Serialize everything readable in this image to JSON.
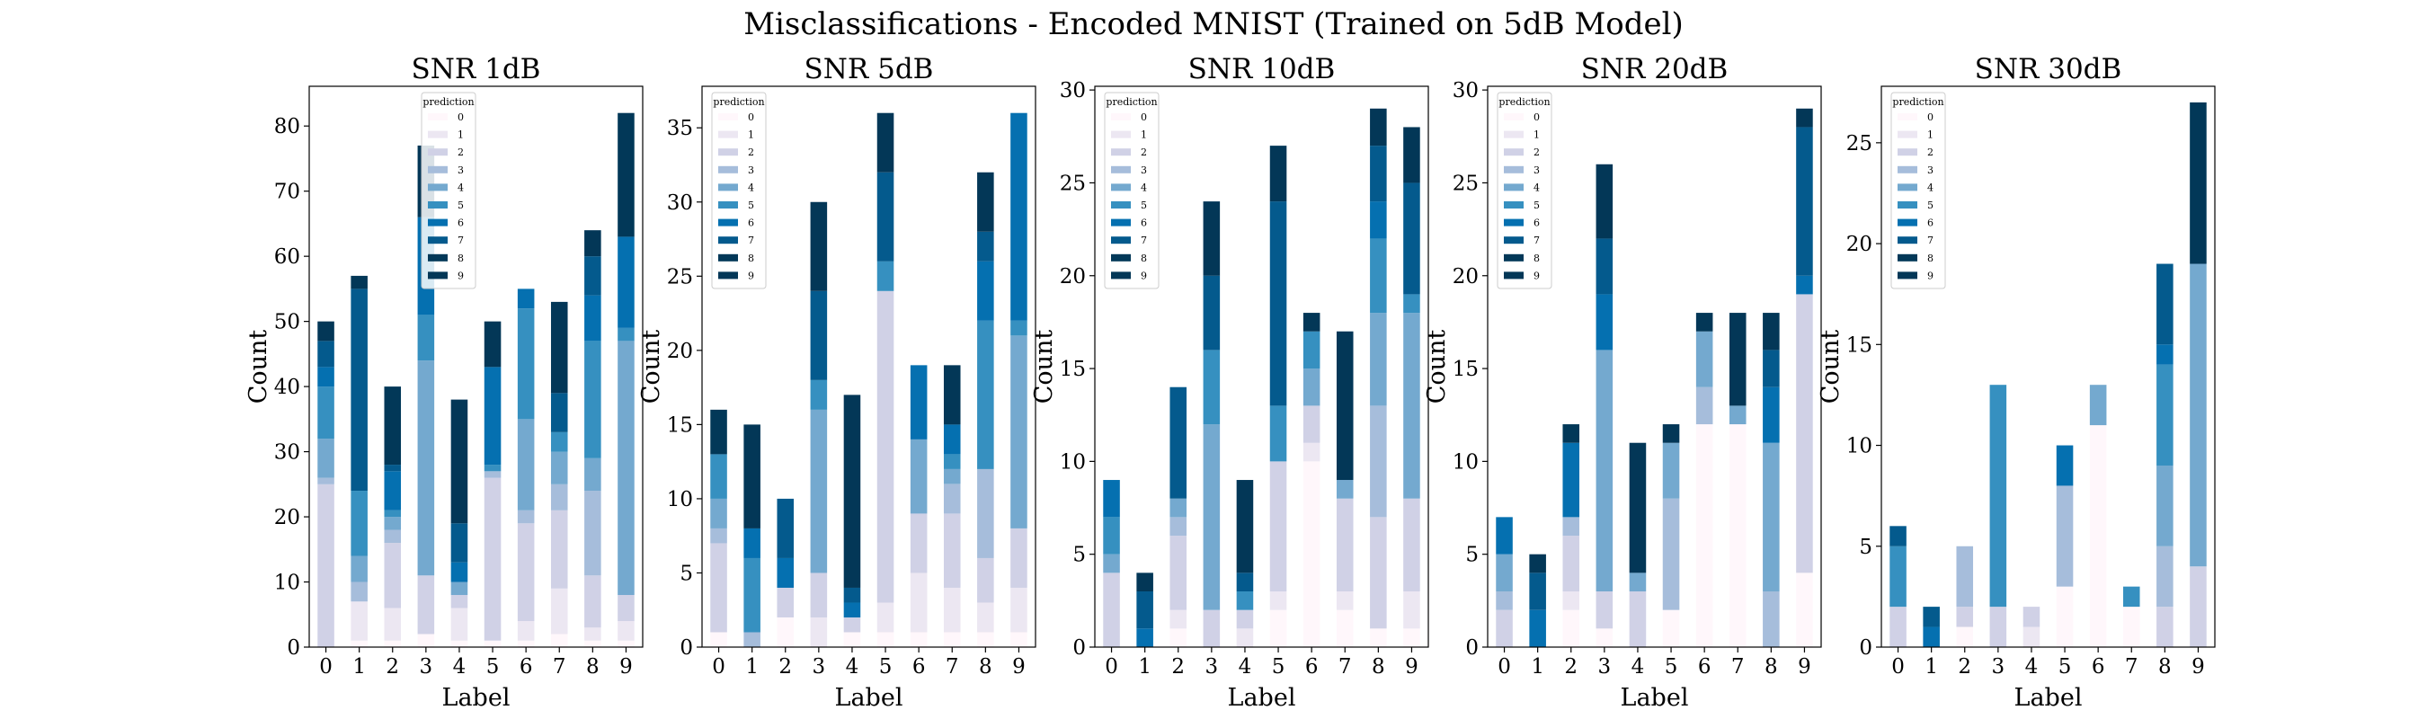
{
  "title": "Misclassifications - Encoded MNIST (Trained on 5dB Model)",
  "legend_title": "prediction",
  "palette": [
    "#fff7fb",
    "#ece7f2",
    "#d0d1e6",
    "#a6bddb",
    "#74a9cf",
    "#3690c0",
    "#0570b0",
    "#045a8d",
    "#023858",
    "#033757"
  ],
  "chart_data": [
    {
      "type": "bar",
      "stacked": true,
      "title": "SNR 1dB",
      "xlabel": "Label",
      "ylabel": "Count",
      "categories": [
        "0",
        "1",
        "2",
        "3",
        "4",
        "5",
        "6",
        "7",
        "8",
        "9"
      ],
      "ylim": [
        0,
        86.1
      ],
      "yticks": [
        0,
        10,
        20,
        30,
        40,
        50,
        60,
        70,
        80
      ],
      "series": [
        {
          "name": "0",
          "values": [
            0,
            1,
            1,
            2,
            1,
            1,
            1,
            2,
            1,
            1
          ]
        },
        {
          "name": "1",
          "values": [
            0,
            6,
            5,
            0,
            5,
            0,
            3,
            7,
            2,
            3
          ]
        },
        {
          "name": "2",
          "values": [
            25,
            0,
            10,
            9,
            2,
            25,
            15,
            12,
            8,
            4
          ]
        },
        {
          "name": "3",
          "values": [
            1,
            3,
            2,
            0,
            0,
            1,
            2,
            4,
            13,
            0
          ]
        },
        {
          "name": "4",
          "values": [
            6,
            4,
            2,
            33,
            2,
            0,
            14,
            5,
            5,
            39
          ]
        },
        {
          "name": "5",
          "values": [
            8,
            10,
            1,
            7,
            0,
            1,
            17,
            3,
            18,
            2
          ]
        },
        {
          "name": "6",
          "values": [
            3,
            0,
            6,
            15,
            3,
            15,
            3,
            0,
            7,
            14
          ]
        },
        {
          "name": "7",
          "values": [
            4,
            31,
            1,
            0,
            6,
            0,
            0,
            6,
            6,
            0
          ]
        },
        {
          "name": "8",
          "values": [
            0,
            0,
            12,
            0,
            0,
            0,
            0,
            0,
            0,
            19
          ]
        },
        {
          "name": "9",
          "values": [
            3,
            2,
            0,
            11,
            19,
            7,
            0,
            14,
            4,
            0
          ]
        }
      ]
    },
    {
      "type": "bar",
      "stacked": true,
      "title": "SNR 5dB",
      "xlabel": "Label",
      "ylabel": "Count",
      "categories": [
        "0",
        "1",
        "2",
        "3",
        "4",
        "5",
        "6",
        "7",
        "8",
        "9"
      ],
      "ylim": [
        0,
        37.8
      ],
      "yticks": [
        0,
        5,
        10,
        15,
        20,
        25,
        30,
        35
      ],
      "series": [
        {
          "name": "0",
          "values": [
            1,
            0,
            2,
            0,
            1,
            1,
            1,
            1,
            1,
            1
          ]
        },
        {
          "name": "1",
          "values": [
            0,
            0,
            0,
            2,
            0,
            2,
            4,
            3,
            2,
            3
          ]
        },
        {
          "name": "2",
          "values": [
            6,
            0,
            2,
            3,
            1,
            21,
            4,
            5,
            3,
            4
          ]
        },
        {
          "name": "3",
          "values": [
            1,
            1,
            0,
            0,
            0,
            0,
            0,
            2,
            6,
            0
          ]
        },
        {
          "name": "4",
          "values": [
            2,
            0,
            0,
            11,
            0,
            0,
            5,
            1,
            0,
            13
          ]
        },
        {
          "name": "5",
          "values": [
            3,
            5,
            0,
            2,
            0,
            2,
            0,
            1,
            10,
            1
          ]
        },
        {
          "name": "6",
          "values": [
            0,
            2,
            2,
            0,
            1,
            0,
            5,
            2,
            4,
            14
          ]
        },
        {
          "name": "7",
          "values": [
            0,
            0,
            4,
            6,
            1,
            6,
            0,
            0,
            2,
            0
          ]
        },
        {
          "name": "8",
          "values": [
            3,
            0,
            0,
            0,
            0,
            0,
            0,
            0,
            0,
            0
          ]
        },
        {
          "name": "9",
          "values": [
            0,
            7,
            0,
            6,
            13,
            4,
            0,
            4,
            4,
            0
          ]
        }
      ]
    },
    {
      "type": "bar",
      "stacked": true,
      "title": "SNR 10dB",
      "xlabel": "Label",
      "ylabel": "Count",
      "categories": [
        "0",
        "1",
        "2",
        "3",
        "4",
        "5",
        "6",
        "7",
        "8",
        "9"
      ],
      "ylim": [
        0,
        30.2
      ],
      "yticks": [
        0,
        5,
        10,
        15,
        20,
        25,
        30
      ],
      "series": [
        {
          "name": "0",
          "values": [
            0,
            0,
            1,
            0,
            0,
            2,
            10,
            2,
            1,
            1
          ]
        },
        {
          "name": "1",
          "values": [
            0,
            0,
            1,
            0,
            1,
            1,
            1,
            1,
            0,
            2
          ]
        },
        {
          "name": "2",
          "values": [
            4,
            0,
            4,
            2,
            1,
            7,
            2,
            5,
            6,
            5
          ]
        },
        {
          "name": "3",
          "values": [
            0,
            0,
            1,
            0,
            0,
            0,
            0,
            0,
            6,
            0
          ]
        },
        {
          "name": "4",
          "values": [
            1,
            0,
            1,
            10,
            0,
            0,
            2,
            1,
            5,
            10
          ]
        },
        {
          "name": "5",
          "values": [
            2,
            0,
            0,
            4,
            1,
            3,
            2,
            0,
            4,
            1
          ]
        },
        {
          "name": "6",
          "values": [
            2,
            1,
            0,
            0,
            0,
            0,
            0,
            0,
            2,
            0
          ]
        },
        {
          "name": "7",
          "values": [
            0,
            2,
            6,
            4,
            1,
            11,
            0,
            0,
            3,
            6
          ]
        },
        {
          "name": "8",
          "values": [
            0,
            0,
            0,
            0,
            0,
            0,
            0,
            0,
            0,
            0
          ]
        },
        {
          "name": "9",
          "values": [
            0,
            1,
            0,
            4,
            5,
            3,
            1,
            8,
            2,
            3
          ]
        }
      ]
    },
    {
      "type": "bar",
      "stacked": true,
      "title": "SNR 20dB",
      "xlabel": "Label",
      "ylabel": "Count",
      "categories": [
        "0",
        "1",
        "2",
        "3",
        "4",
        "5",
        "6",
        "7",
        "8",
        "9"
      ],
      "ylim": [
        0,
        30.2
      ],
      "yticks": [
        0,
        5,
        10,
        15,
        20,
        25,
        30
      ],
      "series": [
        {
          "name": "0",
          "values": [
            0,
            0,
            2,
            1,
            0,
            2,
            12,
            12,
            0,
            4
          ]
        },
        {
          "name": "1",
          "values": [
            0,
            0,
            1,
            0,
            0,
            0,
            0,
            0,
            0,
            0
          ]
        },
        {
          "name": "2",
          "values": [
            2,
            0,
            3,
            2,
            3,
            0,
            0,
            0,
            0,
            15
          ]
        },
        {
          "name": "3",
          "values": [
            1,
            0,
            1,
            0,
            0,
            6,
            2,
            0,
            3,
            0
          ]
        },
        {
          "name": "4",
          "values": [
            2,
            0,
            0,
            13,
            1,
            3,
            3,
            1,
            8,
            0
          ]
        },
        {
          "name": "5",
          "values": [
            0,
            0,
            0,
            0,
            0,
            0,
            0,
            0,
            0,
            0
          ]
        },
        {
          "name": "6",
          "values": [
            2,
            2,
            4,
            3,
            0,
            0,
            0,
            0,
            3,
            1
          ]
        },
        {
          "name": "7",
          "values": [
            0,
            2,
            0,
            3,
            0,
            0,
            0,
            0,
            2,
            8
          ]
        },
        {
          "name": "8",
          "values": [
            0,
            0,
            1,
            0,
            0,
            0,
            0,
            0,
            0,
            0
          ]
        },
        {
          "name": "9",
          "values": [
            0,
            1,
            0,
            4,
            7,
            1,
            1,
            5,
            2,
            1
          ]
        }
      ]
    },
    {
      "type": "bar",
      "stacked": true,
      "title": "SNR 30dB",
      "xlabel": "Label",
      "ylabel": "Count",
      "categories": [
        "0",
        "1",
        "2",
        "3",
        "4",
        "5",
        "6",
        "7",
        "8",
        "9"
      ],
      "ylim": [
        0,
        27.8
      ],
      "yticks": [
        0,
        5,
        10,
        15,
        20,
        25
      ],
      "series": [
        {
          "name": "0",
          "values": [
            0,
            0,
            1,
            0,
            0,
            3,
            11,
            2,
            0,
            0
          ]
        },
        {
          "name": "1",
          "values": [
            0,
            0,
            0,
            0,
            1,
            0,
            0,
            0,
            0,
            0
          ]
        },
        {
          "name": "2",
          "values": [
            2,
            0,
            1,
            2,
            1,
            0,
            0,
            0,
            2,
            4
          ]
        },
        {
          "name": "3",
          "values": [
            0,
            0,
            3,
            0,
            0,
            5,
            0,
            0,
            3,
            0
          ]
        },
        {
          "name": "4",
          "values": [
            0,
            0,
            0,
            0,
            0,
            0,
            2,
            0,
            4,
            15
          ]
        },
        {
          "name": "5",
          "values": [
            3,
            0,
            0,
            11,
            0,
            0,
            0,
            1,
            5,
            0
          ]
        },
        {
          "name": "6",
          "values": [
            0,
            1,
            0,
            0,
            0,
            2,
            0,
            0,
            1,
            0
          ]
        },
        {
          "name": "7",
          "values": [
            1,
            1,
            0,
            0,
            0,
            0,
            0,
            0,
            4,
            0
          ]
        },
        {
          "name": "8",
          "values": [
            0,
            0,
            0,
            0,
            0,
            0,
            0,
            0,
            0,
            8
          ]
        },
        {
          "name": "9",
          "values": [
            0,
            0,
            0,
            0,
            0,
            0,
            0,
            0,
            0,
            0
          ]
        }
      ]
    }
  ]
}
